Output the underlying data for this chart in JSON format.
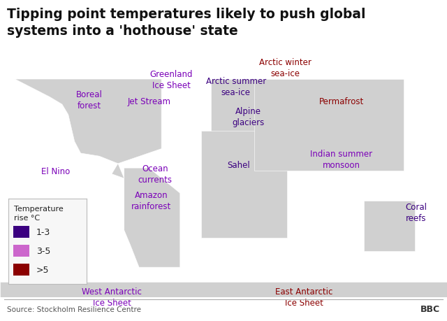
{
  "title_line1": "Tipping point temperatures likely to push global",
  "title_line2": "systems into a 'hothouse' state",
  "title_fontsize": 13.5,
  "background_color": "#ffffff",
  "map_land_color": "#d0d0d0",
  "map_ocean_color": "#ececec",
  "map_border_color": "#ffffff",
  "source_text": "Source: Stockholm Resilience Centre",
  "bbc_text": "BBC",
  "legend_title": "Temperature\nrise °C",
  "legend_items": [
    {
      "label": "1-3",
      "color": "#3b0080"
    },
    {
      "label": "3-5",
      "color": "#cc66cc"
    },
    {
      "label": ">5",
      "color": "#8b0000"
    }
  ],
  "labels": [
    {
      "text": "Greenland\nIce Sheet",
      "lon": -42,
      "lat": 72,
      "color": "#7a00b8",
      "ha": "center",
      "fontsize": 8.5
    },
    {
      "text": "Arctic winter\nsea-ice",
      "lon": 50,
      "lat": 80,
      "color": "#8b0000",
      "ha": "center",
      "fontsize": 8.5
    },
    {
      "text": "Boreal\nforest",
      "lon": -108,
      "lat": 58,
      "color": "#7a00b8",
      "ha": "center",
      "fontsize": 8.5
    },
    {
      "text": "Jet Stream",
      "lon": -60,
      "lat": 57,
      "color": "#7a00b8",
      "ha": "center",
      "fontsize": 8.5
    },
    {
      "text": "Arctic summer\nsea-ice",
      "lon": 10,
      "lat": 67,
      "color": "#3b0080",
      "ha": "center",
      "fontsize": 8.5
    },
    {
      "text": "Permafrost",
      "lon": 95,
      "lat": 57,
      "color": "#8b0000",
      "ha": "center",
      "fontsize": 8.5
    },
    {
      "text": "Alpine\nglaciers",
      "lon": 20,
      "lat": 47,
      "color": "#3b0080",
      "ha": "center",
      "fontsize": 8.5
    },
    {
      "text": "El Nino",
      "lon": -135,
      "lat": 10,
      "color": "#7a00b8",
      "ha": "center",
      "fontsize": 8.5
    },
    {
      "text": "Ocean\ncurrents",
      "lon": -55,
      "lat": 8,
      "color": "#7a00b8",
      "ha": "center",
      "fontsize": 8.5
    },
    {
      "text": "Sahel",
      "lon": 12,
      "lat": 14,
      "color": "#3b0080",
      "ha": "center",
      "fontsize": 8.5
    },
    {
      "text": "Indian summer\nmonsoon",
      "lon": 95,
      "lat": 18,
      "color": "#7a00b8",
      "ha": "center",
      "fontsize": 8.5
    },
    {
      "text": "Amazon\nrainforest",
      "lon": -58,
      "lat": -10,
      "color": "#7a00b8",
      "ha": "center",
      "fontsize": 8.5
    },
    {
      "text": "Coral\nreefs",
      "lon": 155,
      "lat": -18,
      "color": "#3b0080",
      "ha": "center",
      "fontsize": 8.5
    },
    {
      "text": "West Antarctic\nIce Sheet",
      "lon": -90,
      "lat": -75,
      "color": "#7a00b8",
      "ha": "center",
      "fontsize": 8.5
    },
    {
      "text": "East Antarctic\nIce Sheet",
      "lon": 65,
      "lat": -75,
      "color": "#8b0000",
      "ha": "center",
      "fontsize": 8.5
    }
  ]
}
